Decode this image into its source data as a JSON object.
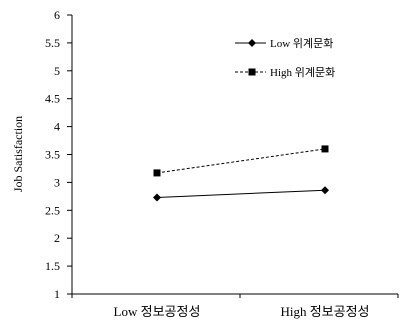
{
  "chart_data": {
    "type": "line",
    "categories": [
      "Low 정보공정성",
      "High 정보공정성"
    ],
    "ylabel": "Job Satisfaction",
    "ylim": [
      1,
      6
    ],
    "yticks": [
      "1",
      "1.5",
      "2",
      "2.5",
      "3",
      "3.5",
      "4",
      "4.5",
      "5",
      "5.5",
      "6"
    ],
    "grid": false,
    "legend_position": "top-right",
    "series": [
      {
        "name": "Low 위계문화",
        "values": [
          2.73,
          2.86
        ],
        "marker": "diamond",
        "line": "solid",
        "color": "#000000"
      },
      {
        "name": "High 위계문화",
        "values": [
          3.17,
          3.6
        ],
        "marker": "square",
        "line": "dashed",
        "color": "#000000"
      }
    ]
  }
}
